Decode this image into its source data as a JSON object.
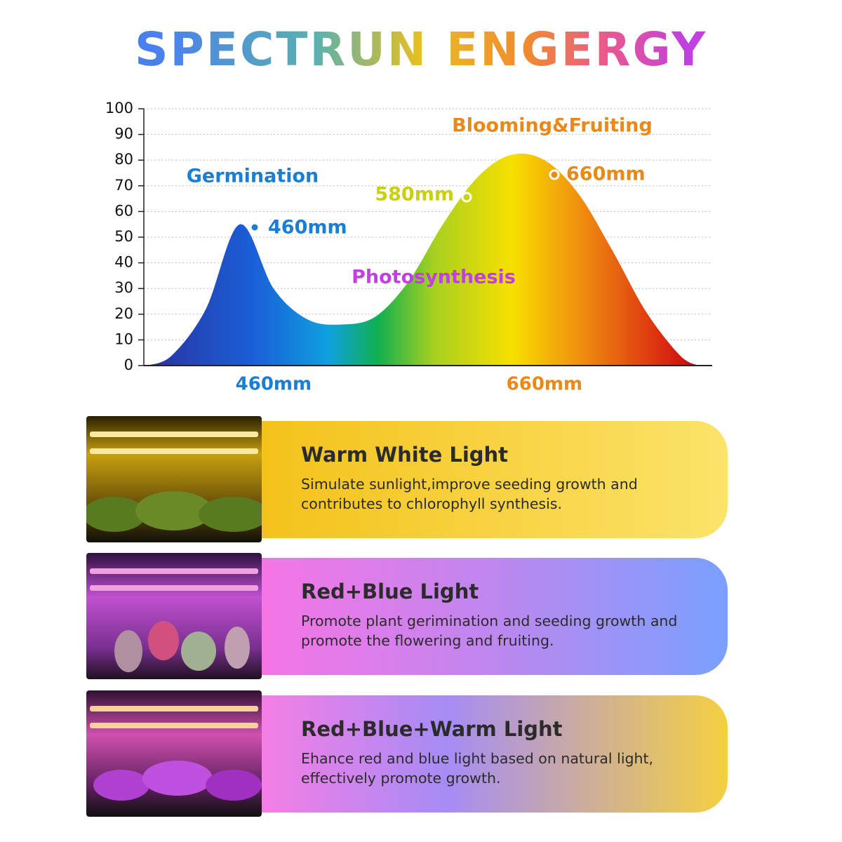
{
  "header": {
    "title": "SPECTRUN ENGERGY"
  },
  "chart_data": {
    "type": "area",
    "categories": [
      null,
      null,
      null,
      "460mm",
      null,
      null,
      null,
      null,
      null,
      null,
      null,
      "660mm",
      null,
      null,
      null,
      null
    ],
    "values": [
      4,
      22,
      55,
      30,
      18,
      16,
      19,
      33,
      55,
      73,
      82,
      80,
      67,
      45,
      21,
      4
    ],
    "ylim": [
      0,
      100
    ],
    "yticks": [
      0,
      10,
      20,
      30,
      40,
      50,
      60,
      70,
      80,
      90,
      100
    ],
    "grid": true,
    "annotations": {
      "germination": "Germination",
      "peak_460": "460mm",
      "mark_580": "580mm",
      "mark_660": "660mm",
      "blooming": "Blooming&Fruiting",
      "photosynthesis": "Photosynthesis"
    }
  },
  "panels": [
    {
      "title": "Warm White Light",
      "text": "Simulate sunlight,improve seeding growth and contributes to chlorophyll synthesis."
    },
    {
      "title": "Red+Blue Light",
      "text": "Promote plant gerimination and seeding growth and promote the flowering and fruiting."
    },
    {
      "title": "Red+Blue+Warm Light",
      "text": "Ehance red and blue light based on natural light, effectively promote growth."
    }
  ]
}
